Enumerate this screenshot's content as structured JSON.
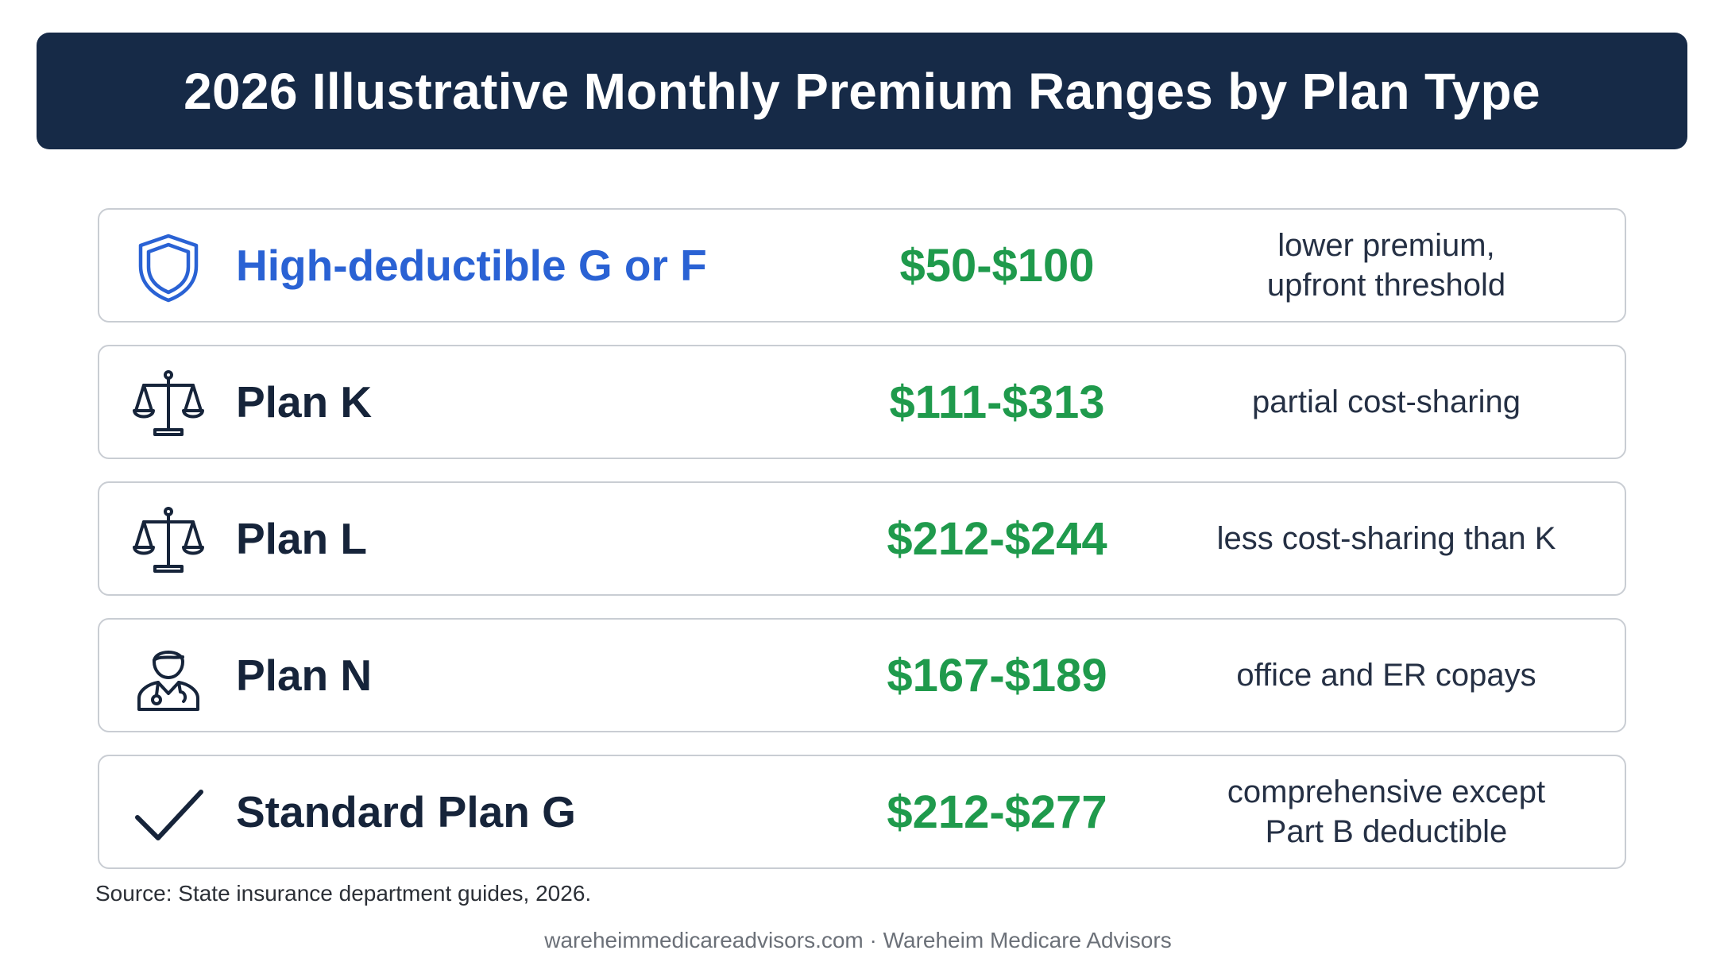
{
  "title": "2026 Illustrative Monthly Premium Ranges by Plan Type",
  "plans": [
    {
      "icon": "shield-icon",
      "name": "High-deductible G or F",
      "price": "$50-$100",
      "note_line1": "lower premium,",
      "note_line2": "upfront threshold"
    },
    {
      "icon": "scales-icon",
      "name": "Plan K",
      "price": "$111-$313",
      "note_line1": "partial cost-sharing",
      "note_line2": ""
    },
    {
      "icon": "scales-icon",
      "name": "Plan L",
      "price": "$212-$244",
      "note_line1": "less cost-sharing than K",
      "note_line2": ""
    },
    {
      "icon": "doctor-icon",
      "name": "Plan N",
      "price": "$167-$189",
      "note_line1": "office and ER copays",
      "note_line2": ""
    },
    {
      "icon": "checkmark-icon",
      "name": "Standard Plan G",
      "price": "$212-$277",
      "note_line1": "comprehensive except",
      "note_line2": "Part B deductible"
    }
  ],
  "source": "Source: State insurance department guides, 2026.",
  "footer": "wareheimmedicareadvisors.com · Wareheim Medicare Advisors",
  "colors": {
    "header_bg": "#162a47",
    "highlight_name": "#2a62d4",
    "price": "#1f9a4c",
    "text": "#16243a",
    "border": "#c9cdd3"
  }
}
